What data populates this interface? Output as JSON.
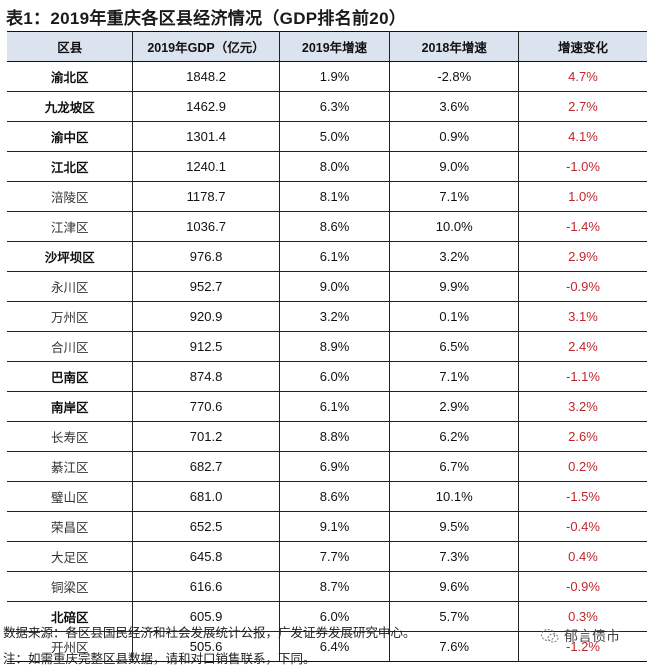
{
  "title": "表1：2019年重庆各区县经济情况（GDP排名前20）",
  "table": {
    "headers": [
      "区县",
      "2019年GDP（亿元）",
      "2019年增速",
      "2018年增速",
      "增速变化"
    ],
    "rows": [
      {
        "district": "渝北区",
        "gdp": "1848.2",
        "g2019": "1.9%",
        "g2018": "-2.8%",
        "change": "4.7%",
        "bold": true
      },
      {
        "district": "九龙坡区",
        "gdp": "1462.9",
        "g2019": "6.3%",
        "g2018": "3.6%",
        "change": "2.7%",
        "bold": true
      },
      {
        "district": "渝中区",
        "gdp": "1301.4",
        "g2019": "5.0%",
        "g2018": "0.9%",
        "change": "4.1%",
        "bold": true
      },
      {
        "district": "江北区",
        "gdp": "1240.1",
        "g2019": "8.0%",
        "g2018": "9.0%",
        "change": "-1.0%",
        "bold": true
      },
      {
        "district": "涪陵区",
        "gdp": "1178.7",
        "g2019": "8.1%",
        "g2018": "7.1%",
        "change": "1.0%",
        "bold": false
      },
      {
        "district": "江津区",
        "gdp": "1036.7",
        "g2019": "8.6%",
        "g2018": "10.0%",
        "change": "-1.4%",
        "bold": false
      },
      {
        "district": "沙坪坝区",
        "gdp": "976.8",
        "g2019": "6.1%",
        "g2018": "3.2%",
        "change": "2.9%",
        "bold": true
      },
      {
        "district": "永川区",
        "gdp": "952.7",
        "g2019": "9.0%",
        "g2018": "9.9%",
        "change": "-0.9%",
        "bold": false
      },
      {
        "district": "万州区",
        "gdp": "920.9",
        "g2019": "3.2%",
        "g2018": "0.1%",
        "change": "3.1%",
        "bold": false
      },
      {
        "district": "合川区",
        "gdp": "912.5",
        "g2019": "8.9%",
        "g2018": "6.5%",
        "change": "2.4%",
        "bold": false
      },
      {
        "district": "巴南区",
        "gdp": "874.8",
        "g2019": "6.0%",
        "g2018": "7.1%",
        "change": "-1.1%",
        "bold": true
      },
      {
        "district": "南岸区",
        "gdp": "770.6",
        "g2019": "6.1%",
        "g2018": "2.9%",
        "change": "3.2%",
        "bold": true
      },
      {
        "district": "长寿区",
        "gdp": "701.2",
        "g2019": "8.8%",
        "g2018": "6.2%",
        "change": "2.6%",
        "bold": false
      },
      {
        "district": "綦江区",
        "gdp": "682.7",
        "g2019": "6.9%",
        "g2018": "6.7%",
        "change": "0.2%",
        "bold": false
      },
      {
        "district": "璧山区",
        "gdp": "681.0",
        "g2019": "8.6%",
        "g2018": "10.1%",
        "change": "-1.5%",
        "bold": false
      },
      {
        "district": "荣昌区",
        "gdp": "652.5",
        "g2019": "9.1%",
        "g2018": "9.5%",
        "change": "-0.4%",
        "bold": false
      },
      {
        "district": "大足区",
        "gdp": "645.8",
        "g2019": "7.7%",
        "g2018": "7.3%",
        "change": "0.4%",
        "bold": false
      },
      {
        "district": "铜梁区",
        "gdp": "616.6",
        "g2019": "8.7%",
        "g2018": "9.6%",
        "change": "-0.9%",
        "bold": false
      },
      {
        "district": "北碚区",
        "gdp": "605.9",
        "g2019": "6.0%",
        "g2018": "5.7%",
        "change": "0.3%",
        "bold": true
      },
      {
        "district": "开州区",
        "gdp": "505.6",
        "g2019": "6.4%",
        "g2018": "7.6%",
        "change": "-1.2%",
        "bold": false
      }
    ]
  },
  "footer": {
    "source": "数据来源：各区县国民经济和社会发展统计公报，广发证券发展研究中心。",
    "note": "注：如需重庆完整区县数据，请和对口销售联系，下同。"
  },
  "watermark": {
    "icon": "wechat-icon",
    "label": "郁言债市"
  },
  "colors": {
    "header_bg": "#dbe3ef",
    "change_text": "#c0272d"
  }
}
